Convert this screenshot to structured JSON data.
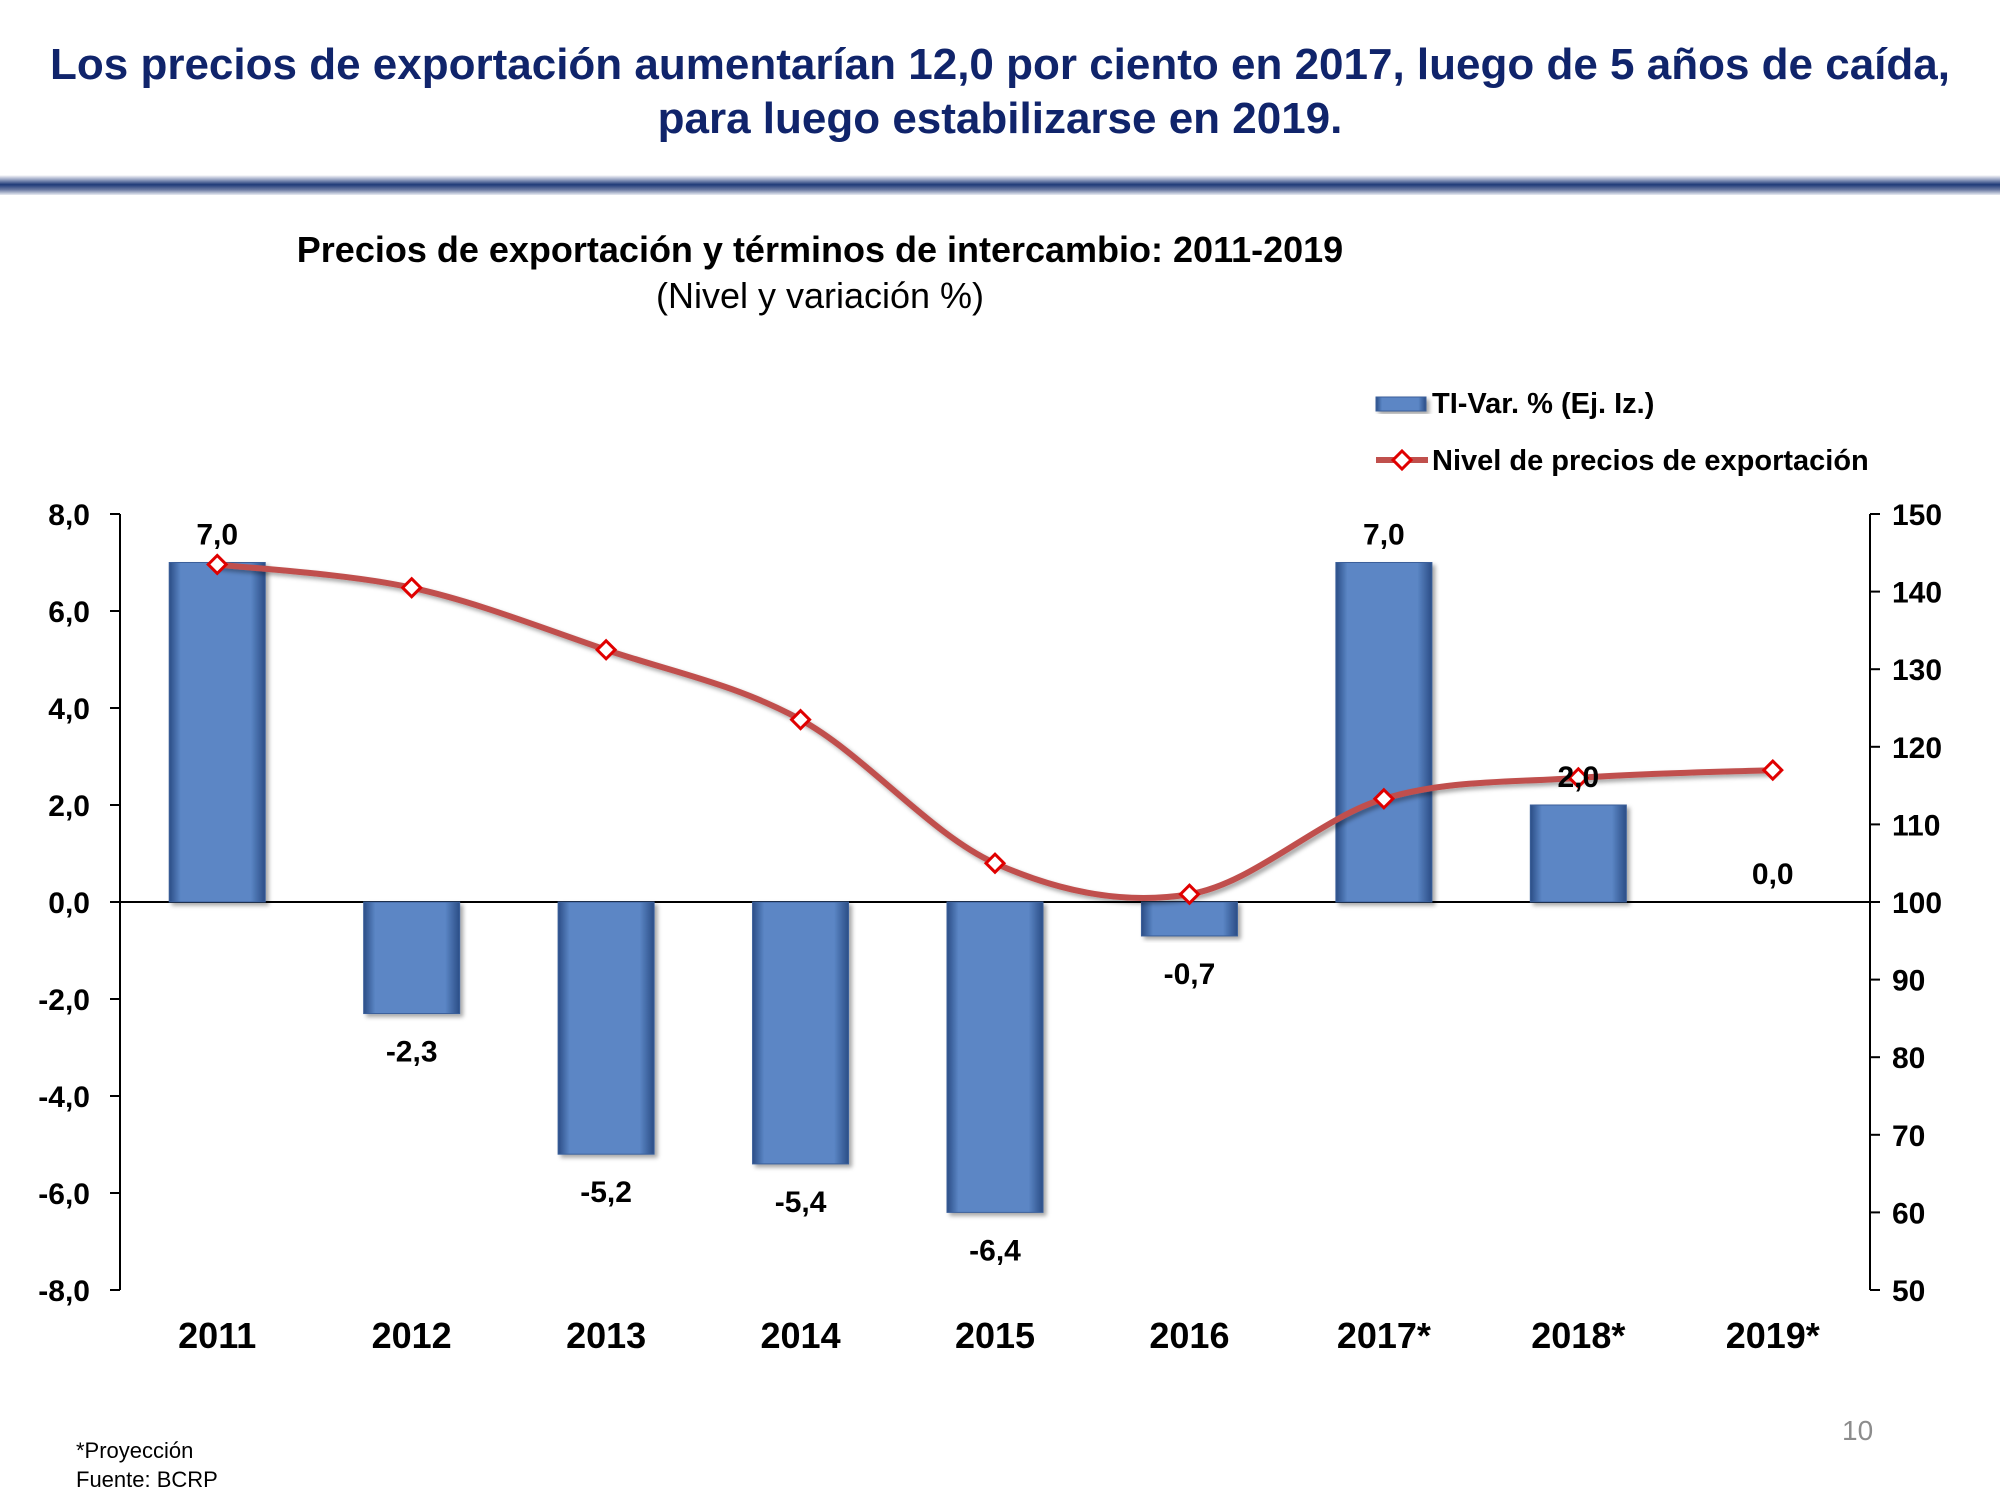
{
  "slide": {
    "headline_line1": "Los precios de exportación aumentarían 12,0 por ciento en 2017, luego de 5 años de caída,",
    "headline_line2": "para luego estabilizarse en 2019.",
    "footnote_projection": "*Proyección",
    "footnote_source": "Fuente: BCRP",
    "page_number": "10"
  },
  "colors": {
    "headline": "#10246b",
    "bar": "#5b86c5",
    "line": "#c0504d",
    "marker_fill": "#ffffff",
    "marker_stroke": "#e00000"
  },
  "chart_data": {
    "type": "bar",
    "title": "Precios de exportación y términos de intercambio: 2011-2019",
    "subtitle": "(Nivel y variación %)",
    "categories": [
      "2011",
      "2012",
      "2013",
      "2014",
      "2015",
      "2016",
      "2017*",
      "2018*",
      "2019*"
    ],
    "series": [
      {
        "name": "TI-Var. %  (Ej. Iz.)",
        "type": "bar",
        "axis": "left",
        "values": [
          7.0,
          -2.3,
          -5.2,
          -5.4,
          -6.4,
          -0.7,
          7.0,
          2.0,
          0.0
        ],
        "labels": [
          "7,0",
          "-2,3",
          "-5,2",
          "-5,4",
          "-6,4",
          "-0,7",
          "7,0",
          "2,0",
          "0,0"
        ]
      },
      {
        "name": "Nivel de precios de exportación",
        "type": "line",
        "axis": "right",
        "values": [
          143.5,
          140.5,
          132.5,
          123.5,
          105,
          101,
          113.3,
          116,
          117
        ]
      }
    ],
    "y_left": {
      "min": -8,
      "max": 8,
      "step": 2,
      "ticks": [
        "8,0",
        "6,0",
        "4,0",
        "2,0",
        "0,0",
        "-2,0",
        "-4,0",
        "-6,0",
        "-8,0"
      ]
    },
    "y_right": {
      "min": 50,
      "max": 150,
      "step": 10,
      "ticks": [
        "150",
        "140",
        "130",
        "120",
        "110",
        "100",
        "90",
        "80",
        "70",
        "60",
        "50"
      ]
    },
    "legend_position": "top-right",
    "grid": false
  }
}
